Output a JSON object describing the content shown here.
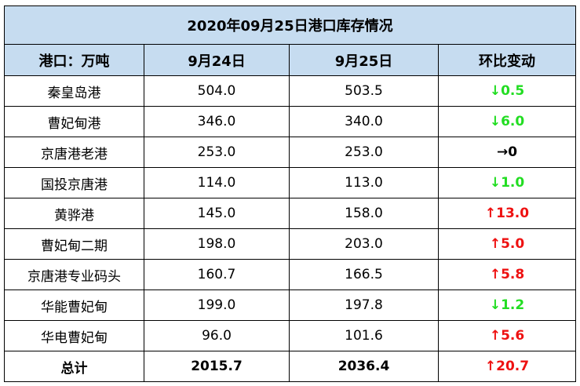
{
  "table": {
    "title": "2020年09月25日港口库存情况",
    "header": [
      "港口：万吨",
      "9月24日",
      "9月25日",
      "环比变动"
    ],
    "rows": [
      [
        "秦皇岛港",
        "504.0",
        "503.5",
        "↓0.5"
      ],
      [
        "曹妃甸港",
        "346.0",
        "340.0",
        "↓6.0"
      ],
      [
        "京唐港老港",
        "253.0",
        "253.0",
        "→0"
      ],
      [
        "国投京唐港",
        "114.0",
        "113.0",
        "↓1.0"
      ],
      [
        "黄骅港",
        "145.0",
        "158.0",
        "↑13.0"
      ],
      [
        "曹妃甸二期",
        "198.0",
        "203.0",
        "↑5.0"
      ],
      [
        "京唐港专业码头",
        "160.7",
        "166.5",
        "↑5.8"
      ],
      [
        "华能曹妃甸",
        "199.0",
        "197.8",
        "↓1.2"
      ],
      [
        "华电曹妃甸",
        "96.0",
        "101.6",
        "↑5.6"
      ]
    ],
    "total": [
      "总计",
      "2015.7",
      "2036.4",
      "↑20.7"
    ],
    "change_colors": [
      "#22dd22",
      "#22dd22",
      "#000000",
      "#22dd22",
      "#ee1111",
      "#ee1111",
      "#ee1111",
      "#22dd22",
      "#ee1111"
    ],
    "total_change_color": "#ee1111"
  }
}
